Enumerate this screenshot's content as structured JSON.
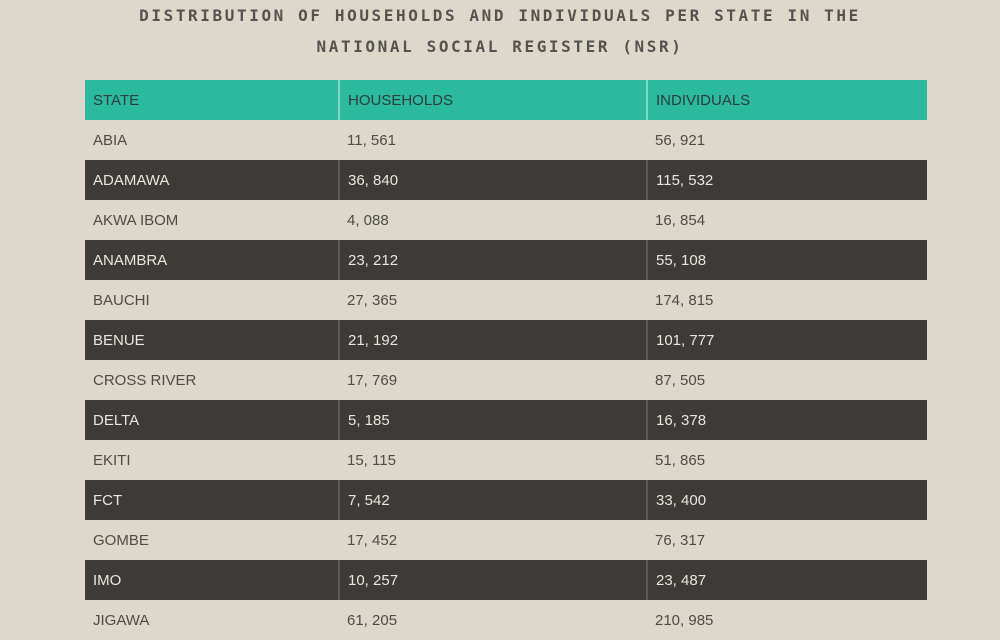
{
  "title": {
    "line1": "DISTRIBUTION OF HOUSEHOLDS AND INDIVIDUALS PER STATE IN THE",
    "line2": "NATIONAL SOCIAL REGISTER (NSR)"
  },
  "colors": {
    "header": "#2bb99f",
    "dark_row": "#3d3b38",
    "background": "#ddd8c9"
  },
  "table": {
    "headers": [
      "STATE",
      "HOUSEHOLDS",
      "INDIVIDUALS"
    ],
    "rows": [
      [
        "ABIA",
        "11, 561",
        "56, 921"
      ],
      [
        "ADAMAWA",
        "36, 840",
        "115, 532"
      ],
      [
        "AKWA IBOM",
        "4, 088",
        "16, 854"
      ],
      [
        "ANAMBRA",
        "23, 212",
        "55, 108"
      ],
      [
        "BAUCHI",
        "27, 365",
        "174, 815"
      ],
      [
        "BENUE",
        "21, 192",
        "101, 777"
      ],
      [
        "CROSS RIVER",
        "17, 769",
        "87, 505"
      ],
      [
        "DELTA",
        "5, 185",
        "16, 378"
      ],
      [
        "EKITI",
        "15, 115",
        "51, 865"
      ],
      [
        "FCT",
        "7, 542",
        "33, 400"
      ],
      [
        "GOMBE",
        "17, 452",
        "76, 317"
      ],
      [
        "IMO",
        "10, 257",
        "23, 487"
      ],
      [
        "JIGAWA",
        "61, 205",
        "210, 985"
      ]
    ]
  }
}
